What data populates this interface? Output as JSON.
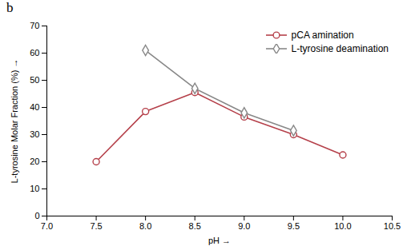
{
  "chart_data": {
    "type": "line",
    "title": "b",
    "xlabel": "pH",
    "ylabel": "L-tyrosine Molar Fraction (%)",
    "x": [
      7.5,
      8.0,
      8.5,
      9.0,
      9.5,
      10.0
    ],
    "series": [
      {
        "name": "pCA amination",
        "color": "#b5404a",
        "marker": "o",
        "values": [
          20,
          38.5,
          45.5,
          36.5,
          30.0,
          22.5
        ]
      },
      {
        "name": "L-tyrosine deamination",
        "color": "#888888",
        "marker": "D",
        "values": [
          null,
          61.0,
          47.0,
          38.0,
          31.5,
          null
        ]
      }
    ],
    "xlim": [
      7.0,
      10.5
    ],
    "xticks": [
      {
        "value": 7.0,
        "label": "7.0"
      },
      7.5,
      {
        "value": 8.0,
        "label": "8.0"
      },
      8.5,
      {
        "value": 9.0,
        "label": "9.0"
      },
      9.5,
      {
        "value": 10.0,
        "label": "10.0"
      },
      10.5
    ],
    "ylim": [
      0,
      70
    ],
    "yticks": [
      0,
      10,
      20,
      30,
      40,
      50,
      60,
      70
    ],
    "legend": "upper right"
  }
}
